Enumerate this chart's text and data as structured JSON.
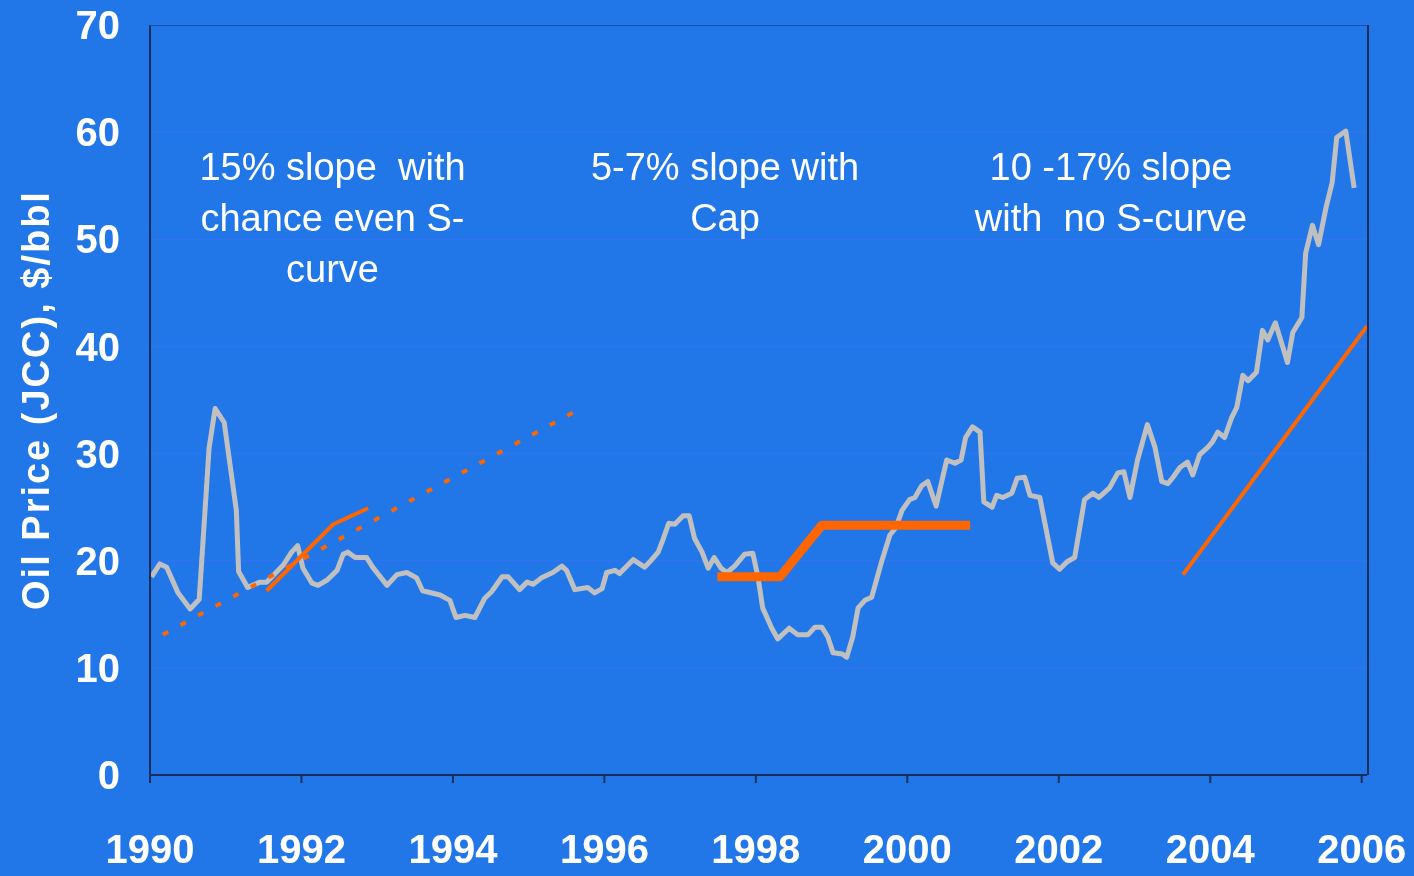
{
  "chart_data": {
    "type": "line",
    "ylabel": "Oil Price (JCC), $/bbl",
    "xlim": [
      1990,
      2006.07
    ],
    "xticks": [
      1990,
      1992,
      1994,
      1996,
      1998,
      2000,
      2002,
      2004,
      2006
    ],
    "ylim": [
      0,
      70
    ],
    "yticks": [
      0,
      10,
      20,
      30,
      40,
      50,
      60,
      70
    ],
    "grid": "y",
    "marker": "none",
    "annotations": [
      "15% slope  with chance even S-curve",
      "5-7% slope with Cap",
      "10 -17% slope with  no S-curve"
    ],
    "series": [
      {
        "color": "#c0c0c0",
        "x": [
          1990.02,
          1990.13,
          1990.22,
          1990.37,
          1990.53,
          1990.65,
          1990.78,
          1990.86,
          1990.98,
          1991.14,
          1991.17,
          1991.29,
          1991.45,
          1991.54,
          1991.76,
          1991.87,
          1991.95,
          1992.02,
          1992.14,
          1992.22,
          1992.34,
          1992.47,
          1992.55,
          1992.61,
          1992.71,
          1992.86,
          1992.94,
          1993.13,
          1993.26,
          1993.39,
          1993.52,
          1993.6,
          1993.83,
          1993.96,
          1994.04,
          1994.16,
          1994.29,
          1994.42,
          1994.51,
          1994.65,
          1994.73,
          1994.88,
          1994.98,
          1995.06,
          1995.17,
          1995.32,
          1995.44,
          1995.5,
          1995.61,
          1995.78,
          1995.87,
          1995.97,
          1996.03,
          1996.14,
          1996.2,
          1996.38,
          1996.53,
          1996.6,
          1996.71,
          1996.77,
          1996.85,
          1996.93,
          1997.04,
          1997.12,
          1997.19,
          1997.29,
          1997.37,
          1997.45,
          1997.54,
          1997.62,
          1997.72,
          1997.85,
          1997.96,
          1998.03,
          1998.09,
          1998.21,
          1998.29,
          1998.44,
          1998.55,
          1998.69,
          1998.78,
          1998.87,
          1998.95,
          1999.02,
          1999.14,
          1999.2,
          1999.28,
          1999.35,
          1999.44,
          1999.53,
          1999.66,
          1999.77,
          1999.85,
          1999.93,
          2000.03,
          2000.1,
          2000.19,
          2000.27,
          2000.38,
          2000.52,
          2000.63,
          2000.71,
          2000.77,
          2000.86,
          2000.96,
          2001.01,
          2001.12,
          2001.18,
          2001.26,
          2001.38,
          2001.45,
          2001.55,
          2001.62,
          2001.75,
          2001.92,
          2002.01,
          2002.11,
          2002.21,
          2002.34,
          2002.45,
          2002.53,
          2002.67,
          2002.78,
          2002.86,
          2002.94,
          2003.04,
          2003.17,
          2003.27,
          2003.36,
          2003.44,
          2003.5,
          2003.6,
          2003.7,
          2003.77,
          2003.86,
          2003.97,
          2004.03,
          2004.1,
          2004.19,
          2004.28,
          2004.35,
          2004.43,
          2004.5,
          2004.61,
          2004.69,
          2004.76,
          2004.86,
          2004.96,
          2005.02,
          2005.09,
          2005.21,
          2005.26,
          2005.35,
          2005.43,
          2005.53,
          2005.61,
          2005.67,
          2005.79,
          2005.9
        ],
        "values": [
          18.5,
          19.7,
          19.4,
          17.0,
          15.5,
          16.4,
          30.5,
          34.2,
          32.9,
          24.7,
          19.0,
          17.5,
          18.0,
          18.0,
          19.6,
          20.8,
          21.4,
          19.3,
          17.9,
          17.7,
          18.2,
          19.1,
          20.6,
          20.8,
          20.3,
          20.3,
          19.4,
          17.7,
          18.7,
          18.9,
          18.4,
          17.2,
          16.8,
          16.3,
          14.7,
          14.9,
          14.7,
          16.5,
          17.1,
          18.5,
          18.5,
          17.3,
          18.0,
          17.8,
          18.4,
          18.9,
          19.5,
          19.1,
          17.3,
          17.5,
          17.0,
          17.4,
          18.9,
          19.1,
          18.8,
          20.1,
          19.4,
          19.9,
          20.8,
          21.9,
          23.5,
          23.4,
          24.2,
          24.2,
          22.1,
          20.8,
          19.3,
          20.3,
          19.3,
          18.9,
          19.5,
          20.6,
          20.7,
          18.4,
          15.6,
          13.7,
          12.7,
          13.7,
          13.1,
          13.1,
          13.8,
          13.8,
          12.9,
          11.4,
          11.3,
          11.0,
          12.9,
          15.6,
          16.3,
          16.6,
          19.9,
          22.4,
          23.1,
          24.7,
          25.7,
          25.9,
          27.0,
          27.4,
          25.1,
          29.4,
          29.1,
          29.4,
          31.5,
          32.5,
          32.0,
          25.5,
          25.0,
          26.1,
          25.9,
          26.3,
          27.7,
          27.8,
          26.1,
          25.9,
          19.8,
          19.2,
          19.9,
          20.3,
          25.7,
          26.3,
          25.9,
          26.8,
          28.2,
          28.3,
          25.9,
          29.4,
          32.7,
          30.6,
          27.4,
          27.2,
          27.7,
          28.7,
          29.2,
          28.0,
          29.9,
          30.6,
          31.1,
          32.0,
          31.5,
          33.3,
          34.3,
          37.3,
          36.8,
          37.6,
          41.5,
          40.6,
          42.2,
          39.9,
          38.5,
          41.3,
          42.7,
          48.7,
          51.3,
          49.5,
          53.0,
          55.3,
          59.5,
          60.1,
          54.8
        ]
      },
      {
        "color": "#ff6600",
        "line_style": "dotted",
        "x": [
          1990.17,
          1995.58
        ],
        "values": [
          13.1,
          33.8
        ]
      },
      {
        "color": "#ff6600",
        "line_style": "solid",
        "x": [
          1991.54,
          1992.42,
          1992.88
        ],
        "values": [
          17.2,
          23.4,
          24.9
        ]
      },
      {
        "color": "#ff6600",
        "line_style": "solid",
        "x": [
          1997.49,
          1998.32,
          1998.87,
          2000.83
        ],
        "values": [
          18.5,
          18.5,
          23.3,
          23.3
        ]
      },
      {
        "color": "#ff6600",
        "line_style": "solid",
        "x": [
          2003.64,
          2006.07
        ],
        "values": [
          18.7,
          41.9
        ]
      }
    ]
  }
}
